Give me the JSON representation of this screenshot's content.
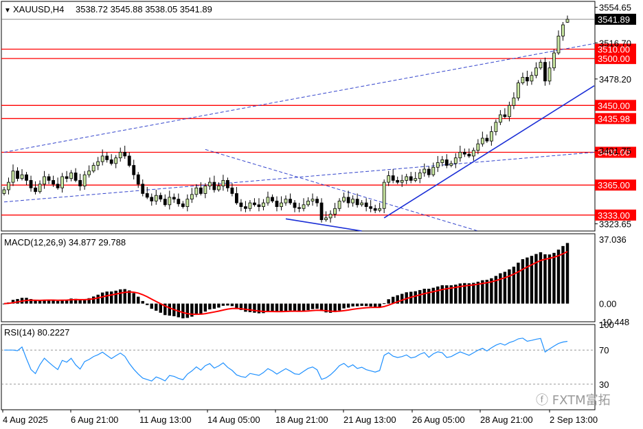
{
  "header": {
    "symbol": "XAUUSD,H4",
    "ohlc": "3538.72 3545.88 3538.05 3541.89",
    "last_price": "3541.89"
  },
  "price_axis": {
    "ticks": [
      "3554.65",
      "3516.70",
      "3478.20",
      "3401.75",
      "3323.65"
    ],
    "range": [
      3316,
      3561
    ]
  },
  "levels": [
    {
      "value": 3510.0,
      "label": "3510.00"
    },
    {
      "value": 3500.0,
      "label": "3500.00"
    },
    {
      "value": 3450.0,
      "label": "3450.00"
    },
    {
      "value": 3435.98,
      "label": "3435.98"
    },
    {
      "value": 3400.0,
      "label": "3400.00"
    },
    {
      "value": 3365.0,
      "label": "3365.00"
    },
    {
      "value": 3333.0,
      "label": "3333.00"
    }
  ],
  "macd": {
    "title": "MACD(12,26,9) 34.877 29.788",
    "ticks": [
      "37.036",
      "0.00",
      "-10.448"
    ],
    "range": [
      -10.448,
      37.036
    ]
  },
  "rsi": {
    "title": "RSI(14) 80.2227",
    "ticks": [
      "100",
      "70",
      "30"
    ],
    "levels": [
      70,
      30
    ]
  },
  "time_axis": {
    "labels": [
      "4 Aug 2025",
      "6 Aug 21:00",
      "11 Aug 13:00",
      "14 Aug 05:00",
      "18 Aug 21:00",
      "21 Aug 13:00",
      "26 Aug 05:00",
      "28 Aug 21:00",
      "2 Sep 13:00"
    ]
  },
  "watermark": "FXTM富拓",
  "colors": {
    "level_line": "#ff0000",
    "trend_solid": "#1a2ed6",
    "trend_dashed": "#3344cc",
    "macd_hist": "#000000",
    "macd_signal": "#ff0000",
    "rsi_line": "#1e90ff",
    "candle_up": "#c8e6a0",
    "candle_down": "#000000"
  },
  "chart_data": {
    "type": "candlestick",
    "symbol": "XAUUSD",
    "timeframe": "H4",
    "closes": [
      3360,
      3368,
      3380,
      3372,
      3376,
      3370,
      3362,
      3358,
      3366,
      3374,
      3370,
      3366,
      3362,
      3374,
      3372,
      3378,
      3370,
      3364,
      3376,
      3380,
      3386,
      3390,
      3396,
      3392,
      3388,
      3394,
      3400,
      3396,
      3386,
      3376,
      3366,
      3356,
      3352,
      3348,
      3354,
      3350,
      3344,
      3352,
      3350,
      3345,
      3342,
      3350,
      3355,
      3362,
      3356,
      3364,
      3368,
      3360,
      3364,
      3370,
      3362,
      3356,
      3346,
      3342,
      3340,
      3346,
      3344,
      3342,
      3346,
      3352,
      3348,
      3342,
      3346,
      3350,
      3346,
      3341,
      3340,
      3344,
      3348,
      3350,
      3346,
      3328,
      3330,
      3334,
      3340,
      3348,
      3352,
      3346,
      3350,
      3344,
      3346,
      3342,
      3340,
      3338,
      3340,
      3368,
      3375,
      3370,
      3368,
      3370,
      3374,
      3370,
      3372,
      3378,
      3382,
      3376,
      3384,
      3389,
      3392,
      3386,
      3388,
      3394,
      3400,
      3398,
      3396,
      3402,
      3409,
      3415,
      3412,
      3422,
      3432,
      3440,
      3438,
      3450,
      3458,
      3474,
      3480,
      3476,
      3482,
      3490,
      3496,
      3476,
      3490,
      3506,
      3524,
      3536,
      3541.89
    ],
    "last": {
      "open": 3538.72,
      "high": 3545.88,
      "low": 3538.05,
      "close": 3541.89
    },
    "ylim": [
      3316,
      3561
    ],
    "horizontal_levels": [
      3510.0,
      3500.0,
      3450.0,
      3435.98,
      3400.0,
      3365.0,
      3333.0
    ],
    "macd": {
      "fast": 12,
      "slow": 26,
      "signal": 9,
      "main": 34.877,
      "signal_value": 29.788,
      "ylim": [
        -10.448,
        37.036
      ]
    },
    "rsi": {
      "period": 14,
      "value": 80.2227,
      "levels": [
        70,
        30
      ]
    }
  }
}
